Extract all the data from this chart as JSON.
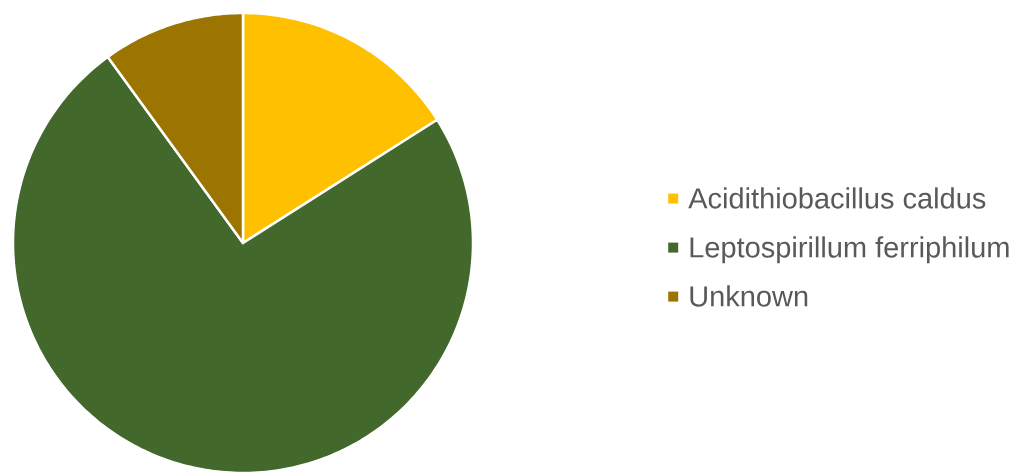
{
  "chart_data": {
    "type": "pie",
    "categories": [
      "Acidithiobacillus caldus",
      "Leptospirillum ferriphilum",
      "Unknown"
    ],
    "values": [
      16,
      74,
      10
    ],
    "colors": [
      "#ffc000",
      "#43682b",
      "#9c7500"
    ],
    "legend": "right"
  }
}
